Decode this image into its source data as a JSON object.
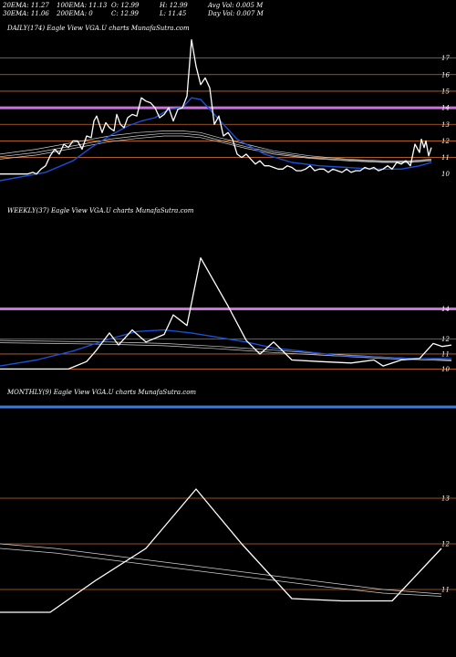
{
  "stats": {
    "ema20": "20EMA: 11.27",
    "ema30": "30EMA: 11.06",
    "ema100": "100EMA: 11.13",
    "ema200": "200EMA: 0",
    "open": "O: 12.99",
    "close": "C: 12.99",
    "high": "H: 12.99",
    "low": "L: 11.45",
    "avg_vol": "Avg Vol: 0.005 M",
    "day_vol": "Day Vol: 0.007 M"
  },
  "colors": {
    "background": "#000000",
    "price": "#ffffff",
    "ema_short": "#1a4fd6",
    "ema_long": "#cfcfcf",
    "level_line": "#c8682a",
    "resistance": "#d070e0",
    "blue_band": "#3a7ad8"
  },
  "chart_data": [
    {
      "type": "line",
      "title": "DAILY(174) Eagle View VGA.U charts MunafaSutra.com",
      "yticks": [
        "17",
        "16",
        "15",
        "14",
        "13",
        "12",
        "11",
        "10"
      ],
      "ylim": [
        9.6,
        18.3
      ],
      "level_lines": [
        17,
        16,
        15,
        13,
        12,
        11
      ],
      "resistance_lines": [
        14
      ],
      "series": [
        {
          "role": "price",
          "x": [
            0,
            8,
            16,
            24,
            30,
            36,
            40,
            45,
            50,
            55,
            60,
            65,
            70,
            75,
            80,
            85,
            90,
            95,
            100,
            103,
            106,
            109,
            112,
            116,
            120,
            125,
            128,
            132,
            136,
            140,
            145,
            150,
            155,
            160,
            165,
            170,
            175,
            180,
            185,
            190,
            195,
            200,
            205,
            210,
            215,
            220,
            225,
            230,
            235,
            240,
            245,
            250,
            255,
            260,
            265,
            270,
            275,
            280,
            285,
            290,
            295,
            300,
            305,
            310,
            315,
            320,
            325,
            330,
            335,
            340,
            345,
            350,
            355,
            360,
            365,
            370,
            375,
            380,
            385,
            390,
            395,
            400,
            405,
            410,
            415,
            420,
            425,
            430,
            435,
            440,
            445,
            450,
            455,
            460,
            462,
            465,
            467,
            470,
            473
          ],
          "values": [
            10.0,
            10.0,
            10.0,
            10.0,
            10.0,
            10.1,
            10.0,
            10.3,
            10.5,
            11.1,
            11.5,
            11.2,
            11.8,
            11.6,
            12.0,
            12.0,
            11.5,
            12.3,
            12.2,
            13.2,
            13.5,
            13.0,
            12.5,
            13.1,
            12.8,
            12.6,
            13.6,
            13.0,
            12.8,
            13.4,
            13.6,
            13.5,
            14.6,
            14.4,
            14.3,
            14.0,
            13.4,
            13.6,
            14.0,
            13.2,
            13.9,
            14.0,
            14.7,
            18.1,
            16.5,
            15.4,
            15.8,
            15.2,
            13.0,
            13.5,
            12.3,
            12.5,
            12.1,
            11.2,
            11.0,
            11.2,
            10.9,
            10.6,
            10.8,
            10.5,
            10.5,
            10.4,
            10.3,
            10.3,
            10.5,
            10.4,
            10.2,
            10.2,
            10.3,
            10.5,
            10.2,
            10.3,
            10.3,
            10.1,
            10.3,
            10.2,
            10.1,
            10.3,
            10.1,
            10.2,
            10.2,
            10.4,
            10.3,
            10.4,
            10.2,
            10.3,
            10.5,
            10.3,
            10.7,
            10.6,
            10.8,
            10.5,
            11.8,
            11.3,
            12.1,
            11.6,
            12.0,
            11.1,
            11.6
          ]
        },
        {
          "role": "ema_short",
          "x": [
            0,
            50,
            80,
            100,
            120,
            140,
            155,
            170,
            185,
            200,
            210,
            220,
            230,
            240,
            260,
            290,
            320,
            350,
            380,
            410,
            440,
            460,
            473
          ],
          "values": [
            9.6,
            10.1,
            10.8,
            11.6,
            12.3,
            12.9,
            13.2,
            13.4,
            13.9,
            14.0,
            14.6,
            14.5,
            13.9,
            13.3,
            12.1,
            11.2,
            10.7,
            10.5,
            10.4,
            10.3,
            10.3,
            10.5,
            10.7
          ]
        },
        {
          "role": "ema_long",
          "x": [
            0,
            40,
            80,
            120,
            150,
            180,
            200,
            220,
            240,
            270,
            300,
            340,
            380,
            420,
            450,
            473
          ],
          "values": [
            11.2,
            11.5,
            11.9,
            12.3,
            12.5,
            12.6,
            12.6,
            12.5,
            12.2,
            11.8,
            11.4,
            11.1,
            10.9,
            10.8,
            10.8,
            10.9
          ]
        },
        {
          "role": "ema_long",
          "x": [
            0,
            40,
            80,
            120,
            150,
            180,
            200,
            220,
            240,
            270,
            300,
            340,
            380,
            420,
            450,
            473
          ],
          "values": [
            11.05,
            11.3,
            11.7,
            12.1,
            12.3,
            12.45,
            12.45,
            12.35,
            12.05,
            11.65,
            11.3,
            11.0,
            10.85,
            10.75,
            10.75,
            10.85
          ]
        },
        {
          "role": "ema_long",
          "x": [
            0,
            40,
            80,
            120,
            150,
            180,
            200,
            220,
            240,
            270,
            300,
            340,
            380,
            420,
            450,
            473
          ],
          "values": [
            10.9,
            11.15,
            11.55,
            11.95,
            12.15,
            12.3,
            12.3,
            12.2,
            11.95,
            11.55,
            11.2,
            10.95,
            10.8,
            10.7,
            10.7,
            10.8
          ]
        }
      ]
    },
    {
      "type": "line",
      "title": "WEEKLY(37) Eagle View VGA.U charts MunafaSutra.com",
      "yticks": [
        "14",
        "12",
        "11",
        "10"
      ],
      "ylim": [
        9.6,
        17.8
      ],
      "level_lines": [
        12,
        11,
        10
      ],
      "resistance_lines": [
        14
      ],
      "series": [
        {
          "role": "price",
          "x": [
            0,
            40,
            75,
            95,
            105,
            120,
            130,
            145,
            160,
            180,
            190,
            205,
            220,
            235,
            250,
            270,
            285,
            300,
            320,
            350,
            385,
            410,
            420,
            440,
            460,
            475,
            485,
            495
          ],
          "values": [
            10.0,
            10.0,
            10.0,
            10.5,
            11.2,
            12.4,
            11.6,
            12.6,
            11.8,
            12.3,
            13.6,
            12.9,
            17.4,
            15.8,
            14.2,
            11.9,
            11.0,
            11.8,
            10.6,
            10.5,
            10.4,
            10.6,
            10.2,
            10.6,
            10.7,
            11.7,
            11.5,
            11.6
          ],
          "note": ""
        },
        {
          "role": "ema_short",
          "x": [
            0,
            40,
            80,
            120,
            150,
            180,
            210,
            240,
            270,
            300,
            330,
            370,
            410,
            450,
            495
          ],
          "values": [
            10.2,
            10.6,
            11.2,
            12.0,
            12.5,
            12.6,
            12.4,
            12.1,
            11.8,
            11.4,
            11.2,
            10.9,
            10.8,
            10.7,
            10.7
          ]
        },
        {
          "role": "ema_long",
          "x": [
            0,
            60,
            120,
            180,
            240,
            300,
            360,
            420,
            495
          ],
          "values": [
            11.9,
            11.85,
            11.8,
            11.7,
            11.5,
            11.25,
            11.0,
            10.8,
            10.6
          ]
        },
        {
          "role": "ema_long",
          "x": [
            0,
            60,
            120,
            180,
            240,
            300,
            360,
            420,
            495
          ],
          "values": [
            11.75,
            11.7,
            11.65,
            11.55,
            11.35,
            11.1,
            10.9,
            10.7,
            10.55
          ]
        }
      ]
    },
    {
      "type": "line",
      "title": "MONTHLY(9) Eagle View VGA.U charts MunafaSutra.com",
      "yticks": [
        "13",
        "12",
        "11"
      ],
      "ylim": [
        10.2,
        15.2
      ],
      "level_lines": [
        13,
        12,
        11
      ],
      "blue_band_value": 15.0,
      "series": [
        {
          "role": "price",
          "x": [
            0,
            55,
            105,
            160,
            215,
            265,
            320,
            375,
            430,
            484
          ],
          "values": [
            10.5,
            10.5,
            11.2,
            11.9,
            13.2,
            12.0,
            10.8,
            10.75,
            10.75,
            11.9
          ]
        },
        {
          "role": "ema_long",
          "x": [
            0,
            60,
            120,
            180,
            240,
            300,
            360,
            420,
            484
          ],
          "values": [
            12.0,
            11.9,
            11.75,
            11.6,
            11.45,
            11.3,
            11.15,
            11.0,
            10.9
          ]
        },
        {
          "role": "ema_long",
          "x": [
            0,
            60,
            120,
            180,
            240,
            300,
            360,
            420,
            484
          ],
          "values": [
            11.9,
            11.8,
            11.65,
            11.5,
            11.35,
            11.2,
            11.05,
            10.92,
            10.85
          ]
        }
      ]
    }
  ]
}
